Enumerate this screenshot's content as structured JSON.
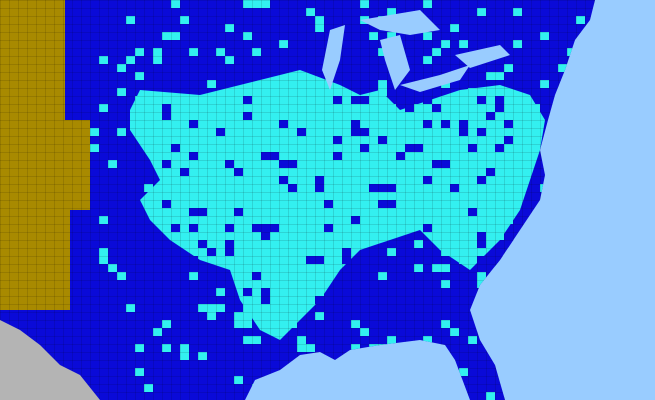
{
  "palette": [
    "#99ccff",
    "#0a0ad8",
    "#a88a00",
    "#b4b4b4",
    "#33f0f0"
  ]
}
